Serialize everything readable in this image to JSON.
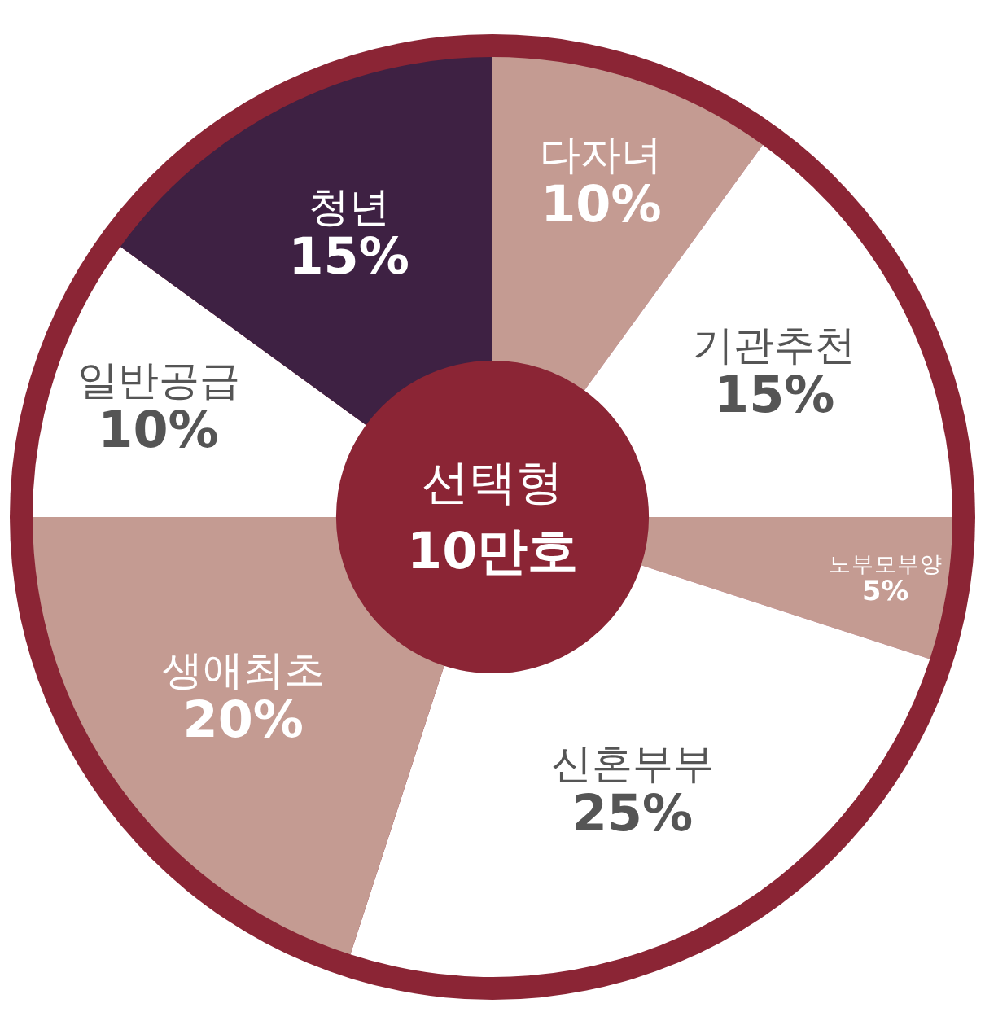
{
  "chart_data": {
    "type": "donut",
    "categories": [
      "다자녀",
      "기관추천",
      "노부모부양",
      "신혼부부",
      "생애최초",
      "일반공급",
      "청년"
    ],
    "values": [
      10,
      15,
      5,
      25,
      20,
      10,
      15
    ],
    "value_labels": [
      "10%",
      "15%",
      "5%",
      "25%",
      "20%",
      "10%",
      "15%"
    ],
    "colors": [
      "#c49b92",
      "#ffffff",
      "#c49b92",
      "#ffffff",
      "#c49b92",
      "#ffffff",
      "#3e2143"
    ],
    "annotations": [
      "선택형",
      "10만호"
    ],
    "legend": false
  }
}
